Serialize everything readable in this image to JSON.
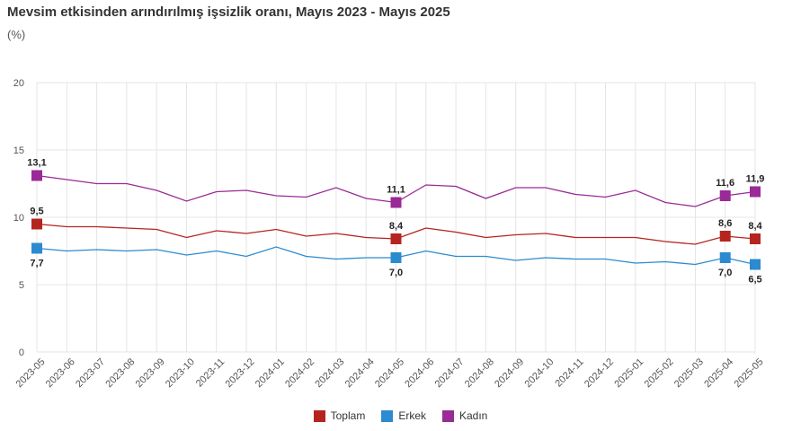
{
  "chart_data": {
    "type": "line",
    "title": "Mevsim etkisinden arındırılmış işsizlik oranı, Mayıs 2023 - Mayıs 2025",
    "unit": "(%)",
    "ylim": [
      0,
      20
    ],
    "yticks": [
      "0",
      "5",
      "10",
      "15",
      "20"
    ],
    "grid": true,
    "legend_position": "bottom",
    "categories": [
      "2023-05",
      "2023-06",
      "2023-07",
      "2023-08",
      "2023-09",
      "2023-10",
      "2023-11",
      "2023-12",
      "2024-01",
      "2024-02",
      "2024-03",
      "2024-04",
      "2024-05",
      "2024-06",
      "2024-07",
      "2024-08",
      "2024-09",
      "2024-10",
      "2024-11",
      "2024-12",
      "2025-01",
      "2025-02",
      "2025-03",
      "2025-04",
      "2025-05"
    ],
    "series": [
      {
        "name": "Toplam",
        "color": "#b5241f",
        "values": [
          9.5,
          9.3,
          9.3,
          9.2,
          9.1,
          8.5,
          9.0,
          8.8,
          9.1,
          8.6,
          8.8,
          8.5,
          8.4,
          9.2,
          8.9,
          8.5,
          8.7,
          8.8,
          8.5,
          8.5,
          8.5,
          8.2,
          8.0,
          8.6,
          8.4
        ],
        "markers": [
          {
            "index": 0,
            "label": "9,5"
          },
          {
            "index": 12,
            "label": "8,4"
          },
          {
            "index": 23,
            "label": "8,6"
          },
          {
            "index": 24,
            "label": "8,4"
          }
        ]
      },
      {
        "name": "Erkek",
        "color": "#2b8ad0",
        "values": [
          7.7,
          7.5,
          7.6,
          7.5,
          7.6,
          7.2,
          7.5,
          7.1,
          7.8,
          7.1,
          6.9,
          7.0,
          7.0,
          7.5,
          7.1,
          7.1,
          6.8,
          7.0,
          6.9,
          6.9,
          6.6,
          6.7,
          6.5,
          7.0,
          6.5
        ],
        "markers": [
          {
            "index": 0,
            "label": "7,7"
          },
          {
            "index": 12,
            "label": "7,0"
          },
          {
            "index": 23,
            "label": "7,0"
          },
          {
            "index": 24,
            "label": "6,5"
          }
        ]
      },
      {
        "name": "Kadın",
        "color": "#992a96",
        "values": [
          13.1,
          12.8,
          12.5,
          12.5,
          12.0,
          11.2,
          11.9,
          12.0,
          11.6,
          11.5,
          12.2,
          11.4,
          11.1,
          12.4,
          12.3,
          11.4,
          12.2,
          12.2,
          11.7,
          11.5,
          12.0,
          11.1,
          10.8,
          11.6,
          11.9
        ],
        "markers": [
          {
            "index": 0,
            "label": "13,1"
          },
          {
            "index": 12,
            "label": "11,1"
          },
          {
            "index": 23,
            "label": "11,6"
          },
          {
            "index": 24,
            "label": "11,9"
          }
        ]
      }
    ]
  }
}
